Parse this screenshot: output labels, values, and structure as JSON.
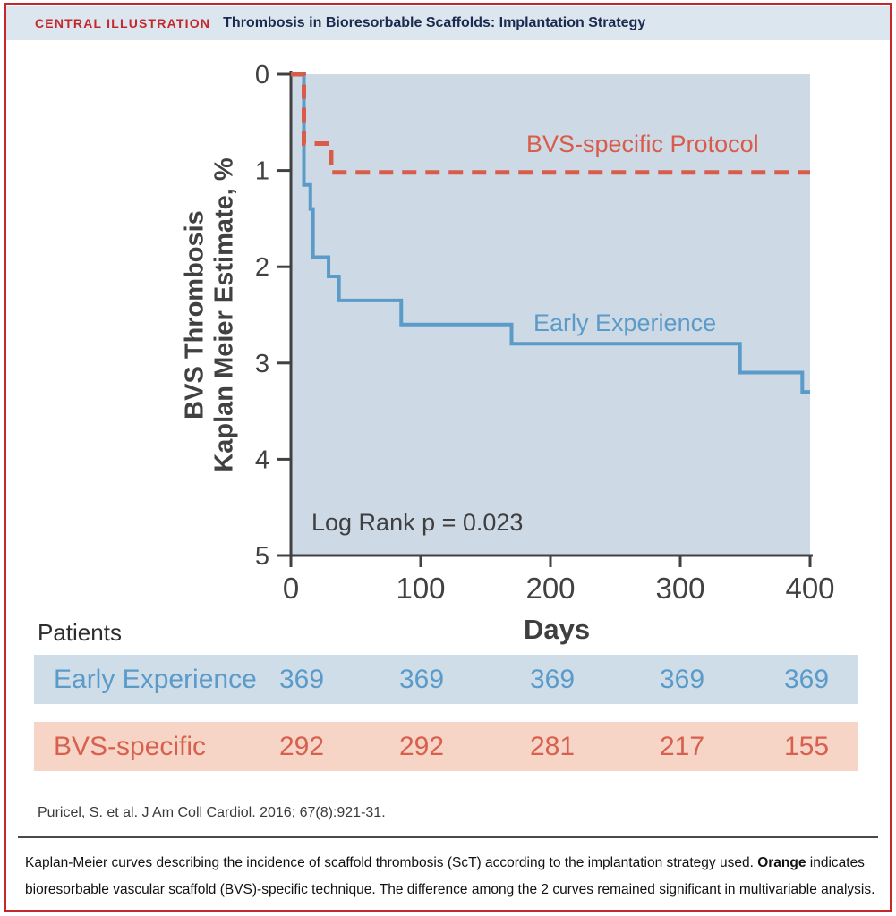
{
  "header": {
    "kicker": "CENTRAL ILLUSTRATION",
    "title": "Thrombosis in Bioresorbable Scaffolds: Implantation Strategy"
  },
  "colors": {
    "accent_red": "#c5272d",
    "header_bg": "#dbe6ef",
    "title_navy": "#1b2a4e",
    "plot_bg": "#cdd9e4",
    "axis": "#414042",
    "blue": "#5b9bc9",
    "red": "#d95c4b",
    "blue_row_bg": "#cfdde9",
    "salmon_row_bg": "#f7d5c6",
    "blue_row_text": "#5b9bc9",
    "red_row_text": "#d7604e"
  },
  "chart_data": {
    "type": "line",
    "subtype": "kaplan-meier-step",
    "xlabel": "Days",
    "ylabel": [
      "BVS Thrombosis",
      "Kaplan Meier Estimate, %"
    ],
    "xlim": [
      0,
      400
    ],
    "ylim": [
      0,
      5
    ],
    "y_axis_inverted_downward": true,
    "x_ticks": [
      0,
      100,
      200,
      300,
      400
    ],
    "y_ticks": [
      0,
      1,
      2,
      3,
      4,
      5
    ],
    "grid": false,
    "annotation": "Log Rank p = 0.023",
    "series": [
      {
        "name": "Early Experience",
        "color_key": "blue",
        "style": "solid",
        "steps_day_pct": [
          [
            0,
            0
          ],
          [
            10,
            1.15
          ],
          [
            15,
            1.4
          ],
          [
            17,
            1.9
          ],
          [
            29,
            2.1
          ],
          [
            37,
            2.35
          ],
          [
            85,
            2.6
          ],
          [
            170,
            2.8
          ],
          [
            346,
            3.1
          ],
          [
            394,
            3.3
          ],
          [
            400,
            3.3
          ]
        ]
      },
      {
        "name": "BVS-specific Protocol",
        "color_key": "red",
        "style": "dashed",
        "steps_day_pct": [
          [
            0,
            0
          ],
          [
            10,
            0.72
          ],
          [
            31,
            1.02
          ],
          [
            400,
            1.02
          ]
        ]
      }
    ]
  },
  "risk_table": {
    "title": "Patients",
    "rows": [
      {
        "label": "Early Experience",
        "theme": "blue",
        "values": [
          "369",
          "369",
          "369",
          "369",
          "369"
        ]
      },
      {
        "label": "BVS-specific",
        "theme": "red",
        "values": [
          "292",
          "292",
          "281",
          "217",
          "155"
        ]
      }
    ]
  },
  "citation": "Puricel, S. et al. J Am Coll Cardiol. 2016; 67(8):921-31.",
  "caption": {
    "part1": "Kaplan-Meier curves describing the incidence of scaffold thrombosis (ScT) according to the implantation strategy used. ",
    "bold": "Orange",
    "part2": " indicates bioresorbable vascular scaffold (BVS)-specific technique. The difference among the 2 curves remained significant in multivariable analysis."
  }
}
